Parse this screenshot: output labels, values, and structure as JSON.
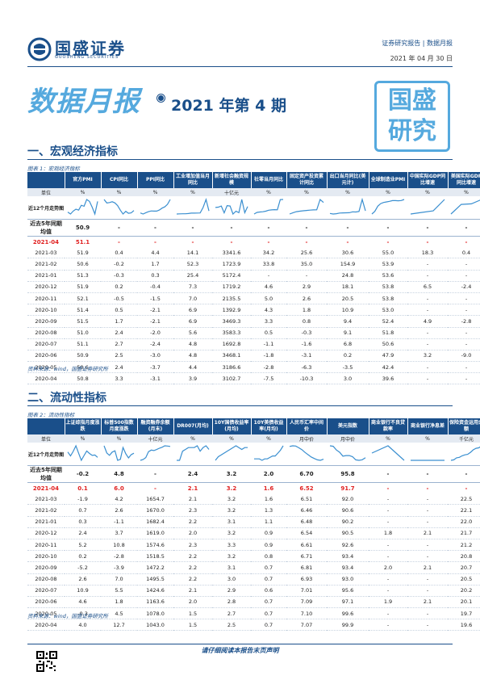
{
  "header": {
    "logo_name": "国盛证券",
    "logo_sub": "GUOSHENG SECURITIES",
    "category": "证券研究报告 | 数据月报",
    "date": "2021 年 04 月 30 日"
  },
  "title": {
    "main": "数据月报",
    "period": "2021 年第 4 期",
    "stamp": [
      "国盛",
      "研究"
    ]
  },
  "section1": {
    "title": "一、宏观经济指标",
    "figure_caption": "图表 1：宏观经济指标",
    "source": "资料来源：wind，国盛证券研究所",
    "headers": [
      "",
      "官方PMI",
      "CPI同比",
      "PPI同比",
      "工业增加值当月同比",
      "新增社会融资规模",
      "社零当月同比",
      "固定资产投资累计同比",
      "出口当月同比(美元计)",
      "全球制造业PMI",
      "中国实际GDP同比增速",
      "美国实际GDP同比增速"
    ],
    "units": [
      "单位",
      "%",
      "%",
      "%",
      "%",
      "十亿元",
      "%",
      "%",
      "%",
      "%",
      "%",
      "%"
    ],
    "spark_label": "近12个月走势图",
    "avg": [
      "近去5年同期均值",
      "50.9",
      "-",
      "-",
      "-",
      "-",
      "-",
      "-",
      "-",
      "-",
      "-",
      "-"
    ],
    "current": [
      "2021-04",
      "51.1",
      "-",
      "-",
      "-",
      "-",
      "-",
      "-",
      "-",
      "-",
      "-",
      "-"
    ],
    "rows": [
      [
        "2021-03",
        "51.9",
        "0.4",
        "4.4",
        "14.1",
        "3341.6",
        "34.2",
        "25.6",
        "30.6",
        "55.0",
        "18.3",
        "0.4"
      ],
      [
        "2021-02",
        "50.6",
        "-0.2",
        "1.7",
        "52.3",
        "1723.9",
        "33.8",
        "35.0",
        "154.9",
        "53.9",
        "-",
        "-"
      ],
      [
        "2021-01",
        "51.3",
        "-0.3",
        "0.3",
        "25.4",
        "5172.4",
        "-",
        "-",
        "24.8",
        "53.6",
        "-",
        "-"
      ],
      [
        "2020-12",
        "51.9",
        "0.2",
        "-0.4",
        "7.3",
        "1719.2",
        "4.6",
        "2.9",
        "18.1",
        "53.8",
        "6.5",
        "-2.4"
      ],
      [
        "2020-11",
        "52.1",
        "-0.5",
        "-1.5",
        "7.0",
        "2135.5",
        "5.0",
        "2.6",
        "20.5",
        "53.8",
        "-",
        "-"
      ],
      [
        "2020-10",
        "51.4",
        "0.5",
        "-2.1",
        "6.9",
        "1392.9",
        "4.3",
        "1.8",
        "10.9",
        "53.0",
        "-",
        "-"
      ],
      [
        "2020-09",
        "51.5",
        "1.7",
        "-2.1",
        "6.9",
        "3469.3",
        "3.3",
        "0.8",
        "9.4",
        "52.4",
        "4.9",
        "-2.8"
      ],
      [
        "2020-08",
        "51.0",
        "2.4",
        "-2.0",
        "5.6",
        "3583.3",
        "0.5",
        "-0.3",
        "9.1",
        "51.8",
        "-",
        "-"
      ],
      [
        "2020-07",
        "51.1",
        "2.7",
        "-2.4",
        "4.8",
        "1692.8",
        "-1.1",
        "-1.6",
        "6.8",
        "50.6",
        "-",
        "-"
      ],
      [
        "2020-06",
        "50.9",
        "2.5",
        "-3.0",
        "4.8",
        "3468.1",
        "-1.8",
        "-3.1",
        "0.2",
        "47.9",
        "3.2",
        "-9.0"
      ],
      [
        "2020-05",
        "50.6",
        "2.4",
        "-3.7",
        "4.4",
        "3186.6",
        "-2.8",
        "-6.3",
        "-3.5",
        "42.4",
        "-",
        "-"
      ],
      [
        "2020-04",
        "50.8",
        "3.3",
        "-3.1",
        "3.9",
        "3102.7",
        "-7.5",
        "-10.3",
        "3.0",
        "39.6",
        "-",
        "-"
      ]
    ],
    "sparklines": [
      [
        50.8,
        50.6,
        50.9,
        51.1,
        51.0,
        51.5,
        51.4,
        52.1,
        51.9,
        51.3,
        50.6,
        51.9
      ],
      [
        3.3,
        2.4,
        2.5,
        2.7,
        2.4,
        1.7,
        0.5,
        -0.5,
        0.2,
        -0.3,
        -0.2,
        0.4
      ],
      [
        -3.1,
        -3.7,
        -3.0,
        -2.4,
        -2.0,
        -2.1,
        -2.1,
        -1.5,
        -0.4,
        0.3,
        1.7,
        4.4
      ],
      [
        3.9,
        4.4,
        4.8,
        4.8,
        5.6,
        6.9,
        6.9,
        7.0,
        7.3,
        25.4,
        52.3,
        14.1
      ],
      [
        3102.7,
        3186.6,
        3468.1,
        1692.8,
        3583.3,
        3469.3,
        1392.9,
        2135.5,
        1719.2,
        5172.4,
        1723.9,
        3341.6
      ],
      [
        -7.5,
        -2.8,
        -1.8,
        -1.1,
        0.5,
        3.3,
        4.3,
        5.0,
        4.6,
        33.8,
        34.2
      ],
      [
        -10.3,
        -6.3,
        -3.1,
        -1.6,
        -0.3,
        0.8,
        1.8,
        2.6,
        2.9,
        35.0,
        25.6
      ],
      [
        3.0,
        -3.5,
        0.2,
        6.8,
        9.1,
        9.4,
        10.9,
        20.5,
        18.1,
        24.8,
        154.9,
        30.6
      ],
      [
        39.6,
        42.4,
        47.9,
        50.6,
        51.8,
        52.4,
        53.0,
        53.8,
        53.8,
        53.6,
        53.9,
        55.0
      ],
      [
        3.2,
        4.9,
        6.5,
        18.3
      ],
      [
        -9.0,
        -2.8,
        -2.4,
        0.4
      ]
    ]
  },
  "section2": {
    "title": "二、流动性指标",
    "figure_caption": "图表 2：流动性指标",
    "source": "资料来源：wind，国盛证券研究所",
    "headers": [
      "",
      "上证综指月度涨跌",
      "标普500指数月度涨跌",
      "融资融券余额(月末)",
      "DR007(月均)",
      "10Y国债收益率(月均)",
      "10Y美债收益率(月均)",
      "人民币汇率中间价",
      "美元指数",
      "商业银行不良贷款率",
      "商业银行净息差",
      "保险资金运用余额"
    ],
    "units": [
      "单位",
      "%",
      "%",
      "十亿元",
      "%",
      "%",
      "%",
      "月中价",
      "月中价",
      "%",
      "%",
      "千亿元"
    ],
    "spark_label": "近12个月走势图",
    "avg": [
      "近去5年同期均值",
      "-0.2",
      "4.8",
      "-",
      "2.4",
      "3.2",
      "2.0",
      "6.70",
      "95.8",
      "-",
      "-",
      "-"
    ],
    "current": [
      "2021-04",
      "0.1",
      "6.0",
      "-",
      "2.1",
      "3.2",
      "1.6",
      "6.52",
      "91.7",
      "-",
      "-",
      "-"
    ],
    "rows": [
      [
        "2021-03",
        "-1.9",
        "4.2",
        "1654.7",
        "2.1",
        "3.2",
        "1.6",
        "6.51",
        "92.0",
        "-",
        "-",
        "22.5"
      ],
      [
        "2021-02",
        "0.7",
        "2.6",
        "1670.0",
        "2.3",
        "3.2",
        "1.3",
        "6.46",
        "90.6",
        "-",
        "-",
        "22.1"
      ],
      [
        "2021-01",
        "0.3",
        "-1.1",
        "1682.4",
        "2.2",
        "3.1",
        "1.1",
        "6.48",
        "90.2",
        "-",
        "-",
        "22.0"
      ],
      [
        "2020-12",
        "2.4",
        "3.7",
        "1619.0",
        "2.0",
        "3.2",
        "0.9",
        "6.54",
        "90.5",
        "1.8",
        "2.1",
        "21.7"
      ],
      [
        "2020-11",
        "5.2",
        "10.8",
        "1574.6",
        "2.3",
        "3.3",
        "0.9",
        "6.61",
        "92.6",
        "-",
        "-",
        "21.2"
      ],
      [
        "2020-10",
        "0.2",
        "-2.8",
        "1518.5",
        "2.2",
        "3.2",
        "0.8",
        "6.71",
        "93.4",
        "-",
        "-",
        "20.8"
      ],
      [
        "2020-09",
        "-5.2",
        "-3.9",
        "1472.2",
        "2.2",
        "3.1",
        "0.7",
        "6.81",
        "93.4",
        "2.0",
        "2.1",
        "20.7"
      ],
      [
        "2020-08",
        "2.6",
        "7.0",
        "1495.5",
        "2.2",
        "3.0",
        "0.7",
        "6.93",
        "93.0",
        "-",
        "-",
        "20.5"
      ],
      [
        "2020-07",
        "10.9",
        "5.5",
        "1424.6",
        "2.1",
        "2.9",
        "0.6",
        "7.01",
        "95.6",
        "-",
        "-",
        "20.2"
      ],
      [
        "2020-06",
        "4.6",
        "1.8",
        "1163.6",
        "2.0",
        "2.8",
        "0.7",
        "7.09",
        "97.1",
        "1.9",
        "2.1",
        "20.1"
      ],
      [
        "2020-05",
        "-0.3",
        "4.5",
        "1078.0",
        "1.5",
        "2.7",
        "0.7",
        "7.10",
        "99.6",
        "-",
        "-",
        "19.7"
      ],
      [
        "2020-04",
        "4.0",
        "12.7",
        "1043.0",
        "1.5",
        "2.5",
        "0.7",
        "7.07",
        "99.9",
        "-",
        "-",
        "19.6"
      ]
    ],
    "sparklines": [
      [
        4.0,
        -0.3,
        4.6,
        10.9,
        2.6,
        -5.2,
        0.2,
        5.2,
        2.4,
        0.3,
        0.7,
        -1.9
      ],
      [
        12.7,
        4.5,
        1.8,
        5.5,
        7.0,
        -3.9,
        -2.8,
        10.8,
        3.7,
        -1.1,
        2.6,
        4.2
      ],
      [
        1043.0,
        1078.0,
        1163.6,
        1424.6,
        1495.5,
        1472.2,
        1518.5,
        1574.6,
        1619.0,
        1682.4,
        1670.0,
        1654.7
      ],
      [
        1.5,
        1.5,
        2.0,
        2.1,
        2.2,
        2.2,
        2.2,
        2.3,
        2.0,
        2.2,
        2.3,
        2.1
      ],
      [
        2.5,
        2.7,
        2.8,
        2.9,
        3.0,
        3.1,
        3.2,
        3.3,
        3.2,
        3.1,
        3.2,
        3.2
      ],
      [
        0.7,
        0.7,
        0.7,
        0.6,
        0.7,
        0.7,
        0.8,
        0.9,
        0.9,
        1.1,
        1.3,
        1.6
      ],
      [
        7.07,
        7.1,
        7.09,
        7.01,
        6.93,
        6.81,
        6.71,
        6.61,
        6.54,
        6.48,
        6.46,
        6.51
      ],
      [
        99.9,
        99.6,
        97.1,
        95.6,
        93.0,
        93.4,
        93.4,
        92.6,
        90.5,
        90.2,
        90.6,
        92.0
      ],
      [
        1.9,
        2.0,
        1.8
      ],
      [
        2.1,
        2.1,
        2.1
      ],
      [
        19.6,
        19.7,
        20.1,
        20.2,
        20.5,
        20.7,
        20.8,
        21.2,
        21.7,
        22.0,
        22.1,
        22.5
      ]
    ]
  },
  "footer": {
    "disclaimer": "请仔细阅读本报告末页声明"
  },
  "colors": {
    "brand_blue": "#1a4f8a",
    "light_blue": "#55a9de",
    "highlight_red": "#e02020"
  }
}
